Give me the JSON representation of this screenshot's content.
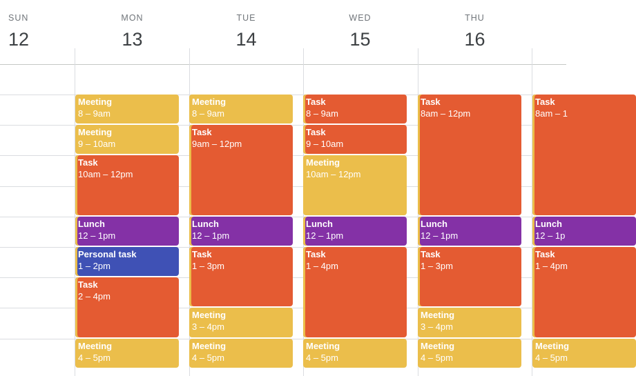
{
  "days": [
    {
      "dow": "SUN",
      "num": "12"
    },
    {
      "dow": "MON",
      "num": "13"
    },
    {
      "dow": "TUE",
      "num": "14"
    },
    {
      "dow": "WED",
      "num": "15"
    },
    {
      "dow": "THU",
      "num": "16"
    },
    {
      "dow": "",
      "num": ""
    }
  ],
  "colors": {
    "meeting": "#ebbe4b",
    "task": "#e45b32",
    "lunch": "#8431a6",
    "personal": "#3f51b5"
  },
  "events": [
    {
      "day": 1,
      "start": 8,
      "end": 9,
      "title": "Meeting",
      "time": "8 – 9am",
      "color": "yellow"
    },
    {
      "day": 1,
      "start": 9,
      "end": 10,
      "title": "Meeting",
      "time": "9 – 10am",
      "color": "yellow"
    },
    {
      "day": 1,
      "start": 10,
      "end": 12,
      "title": "Task",
      "time": "10am – 12pm",
      "color": "orange"
    },
    {
      "day": 1,
      "start": 12,
      "end": 13,
      "title": "Lunch",
      "time": "12 – 1pm",
      "color": "purple"
    },
    {
      "day": 1,
      "start": 13,
      "end": 14,
      "title": "Personal task",
      "time": "1 – 2pm",
      "color": "blue"
    },
    {
      "day": 1,
      "start": 14,
      "end": 16,
      "title": "Task",
      "time": "2 – 4pm",
      "color": "orange"
    },
    {
      "day": 1,
      "start": 16,
      "end": 17,
      "title": "Meeting",
      "time": "4 – 5pm",
      "color": "yellow"
    },
    {
      "day": 2,
      "start": 8,
      "end": 9,
      "title": "Meeting",
      "time": "8 – 9am",
      "color": "yellow"
    },
    {
      "day": 2,
      "start": 9,
      "end": 12,
      "title": "Task",
      "time": "9am – 12pm",
      "color": "orange"
    },
    {
      "day": 2,
      "start": 12,
      "end": 13,
      "title": "Lunch",
      "time": "12 – 1pm",
      "color": "purple"
    },
    {
      "day": 2,
      "start": 13,
      "end": 15,
      "title": "Task",
      "time": "1 – 3pm",
      "color": "orange"
    },
    {
      "day": 2,
      "start": 15,
      "end": 16,
      "title": "Meeting",
      "time": "3 – 4pm",
      "color": "yellow"
    },
    {
      "day": 2,
      "start": 16,
      "end": 17,
      "title": "Meeting",
      "time": "4 – 5pm",
      "color": "yellow"
    },
    {
      "day": 3,
      "start": 8,
      "end": 9,
      "title": "Task",
      "time": "8 – 9am",
      "color": "orange"
    },
    {
      "day": 3,
      "start": 9,
      "end": 10,
      "title": "Task",
      "time": "9 – 10am",
      "color": "orange"
    },
    {
      "day": 3,
      "start": 10,
      "end": 12,
      "title": "Meeting",
      "time": "10am – 12pm",
      "color": "yellow"
    },
    {
      "day": 3,
      "start": 12,
      "end": 13,
      "title": "Lunch",
      "time": "12 – 1pm",
      "color": "purple"
    },
    {
      "day": 3,
      "start": 13,
      "end": 16,
      "title": "Task",
      "time": "1 – 4pm",
      "color": "orange"
    },
    {
      "day": 3,
      "start": 16,
      "end": 17,
      "title": "Meeting",
      "time": "4 – 5pm",
      "color": "yellow"
    },
    {
      "day": 4,
      "start": 8,
      "end": 12,
      "title": "Task",
      "time": "8am – 12pm",
      "color": "orange"
    },
    {
      "day": 4,
      "start": 12,
      "end": 13,
      "title": "Lunch",
      "time": "12 – 1pm",
      "color": "purple"
    },
    {
      "day": 4,
      "start": 13,
      "end": 15,
      "title": "Task",
      "time": "1 – 3pm",
      "color": "orange"
    },
    {
      "day": 4,
      "start": 15,
      "end": 16,
      "title": "Meeting",
      "time": "3 – 4pm",
      "color": "yellow"
    },
    {
      "day": 4,
      "start": 16,
      "end": 17,
      "title": "Meeting",
      "time": "4 – 5pm",
      "color": "yellow"
    },
    {
      "day": 5,
      "start": 8,
      "end": 12,
      "title": "Task",
      "time": "8am – 1",
      "color": "orange"
    },
    {
      "day": 5,
      "start": 12,
      "end": 13,
      "title": "Lunch",
      "time": "12 – 1p",
      "color": "purple"
    },
    {
      "day": 5,
      "start": 13,
      "end": 16,
      "title": "Task",
      "time": "1 – 4pm",
      "color": "orange"
    },
    {
      "day": 5,
      "start": 16,
      "end": 17,
      "title": "Meeting",
      "time": "4 – 5pm",
      "color": "yellow"
    }
  ]
}
